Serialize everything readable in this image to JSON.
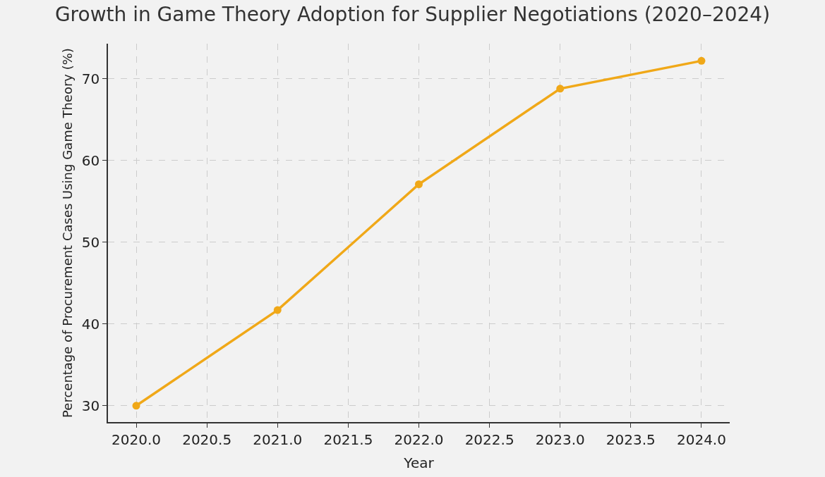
{
  "chart_data": {
    "type": "line",
    "title": "Growth in Game Theory Adoption for Supplier Negotiations (2020–2024)",
    "xlabel": "Year",
    "ylabel": "Percentage of Procurement Cases Using Game Theory (%)",
    "x": [
      2020,
      2021,
      2022,
      2023,
      2024
    ],
    "series": [
      {
        "color": "#f0a818",
        "values": [
          30,
          41.7,
          57.1,
          68.8,
          72.2
        ]
      }
    ],
    "xlim": [
      2019.8,
      2024.2
    ],
    "ylim": [
      28,
      74.3
    ],
    "xticks": [
      {
        "value": 2020,
        "label": "2020.0"
      },
      {
        "value": 2020.5,
        "label": "2020.5"
      },
      {
        "value": 2021,
        "label": "2021.0"
      },
      {
        "value": 2021.5,
        "label": "2021.5"
      },
      {
        "value": 2022,
        "label": "2022.0"
      },
      {
        "value": 2022.5,
        "label": "2022.5"
      },
      {
        "value": 2023,
        "label": "2023.0"
      },
      {
        "value": 2023.5,
        "label": "2023.5"
      },
      {
        "value": 2024,
        "label": "2024.0"
      }
    ],
    "yticks": [
      30,
      40,
      50,
      60,
      70
    ],
    "grid": true,
    "marker": "circle",
    "line_style": "solid"
  }
}
